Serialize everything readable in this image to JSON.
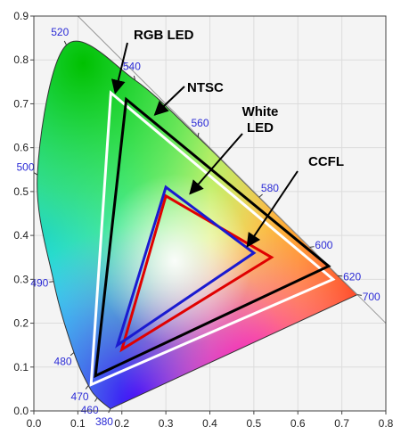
{
  "chart_data": {
    "type": "scatter",
    "title": "",
    "xlabel": "",
    "ylabel": "",
    "xlim": [
      0.0,
      0.8
    ],
    "ylim": [
      0.0,
      0.9
    ],
    "x_ticks": [
      "0.0",
      "0.1",
      "0.2",
      "0.3",
      "0.4",
      "0.5",
      "0.6",
      "0.7",
      "0.8"
    ],
    "y_ticks": [
      "0.0",
      "0.1",
      "0.2",
      "0.3",
      "0.4",
      "0.5",
      "0.6",
      "0.7",
      "0.8",
      "0.9"
    ],
    "spectral_locus": [
      {
        "wavelength": "380",
        "x": 0.174,
        "y": 0.005
      },
      {
        "wavelength": "460",
        "x": 0.144,
        "y": 0.03
      },
      {
        "wavelength": "470",
        "x": 0.124,
        "y": 0.058
      },
      {
        "wavelength": "480",
        "x": 0.091,
        "y": 0.133
      },
      {
        "wavelength": "490",
        "x": 0.045,
        "y": 0.295
      },
      {
        "wavelength": "500",
        "x": 0.008,
        "y": 0.538
      },
      {
        "wavelength": "520",
        "x": 0.074,
        "y": 0.834
      },
      {
        "wavelength": "540",
        "x": 0.23,
        "y": 0.754
      },
      {
        "wavelength": "560",
        "x": 0.373,
        "y": 0.624
      },
      {
        "wavelength": "580",
        "x": 0.512,
        "y": 0.487
      },
      {
        "wavelength": "600",
        "x": 0.627,
        "y": 0.373
      },
      {
        "wavelength": "620",
        "x": 0.691,
        "y": 0.308
      },
      {
        "wavelength": "700",
        "x": 0.735,
        "y": 0.265
      }
    ],
    "series": [
      {
        "name": "RGB LED",
        "color": "#ffffff",
        "points": [
          [
            0.175,
            0.725
          ],
          [
            0.68,
            0.3
          ],
          [
            0.13,
            0.06
          ]
        ]
      },
      {
        "name": "NTSC",
        "color": "#000000",
        "points": [
          [
            0.21,
            0.71
          ],
          [
            0.67,
            0.33
          ],
          [
            0.14,
            0.08
          ]
        ]
      },
      {
        "name": "White LED",
        "color": "#1a1ad0",
        "points": [
          [
            0.3,
            0.51
          ],
          [
            0.5,
            0.36
          ],
          [
            0.19,
            0.15
          ]
        ]
      },
      {
        "name": "CCFL",
        "color": "#e00000",
        "points": [
          [
            0.3,
            0.49
          ],
          [
            0.54,
            0.35
          ],
          [
            0.2,
            0.14
          ]
        ]
      }
    ],
    "annotations": [
      {
        "series": "RGB LED",
        "label": "RGB LED",
        "lines": [
          "RGB LED"
        ],
        "points_to": [
          0.185,
          0.725
        ]
      },
      {
        "series": "NTSC",
        "label": "NTSC",
        "lines": [
          "NTSC"
        ],
        "points_to": [
          0.275,
          0.675
        ]
      },
      {
        "series": "White LED",
        "label": "White LED",
        "lines": [
          "White",
          "LED"
        ],
        "points_to": [
          0.355,
          0.495
        ]
      },
      {
        "series": "CCFL",
        "label": "CCFL",
        "lines": [
          "CCFL"
        ],
        "points_to": [
          0.485,
          0.375
        ]
      }
    ]
  }
}
